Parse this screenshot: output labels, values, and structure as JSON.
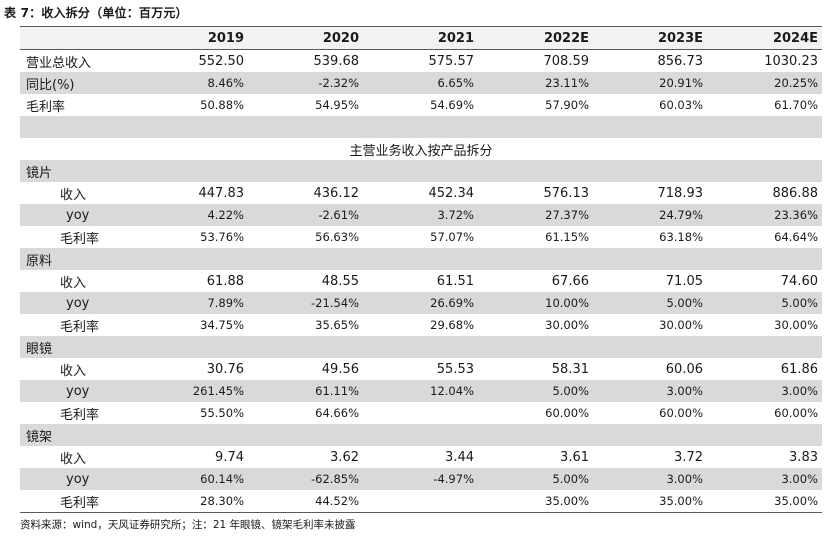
{
  "caption": "表 7：收入拆分（单位：百万元）",
  "columns": [
    "",
    "2019",
    "2020",
    "2021",
    "2022E",
    "2023E",
    "2024E"
  ],
  "summary_rows": [
    {
      "label": "营业总收入",
      "values": [
        "552.50",
        "539.68",
        "575.57",
        "708.59",
        "856.73",
        "1030.23"
      ]
    },
    {
      "label": "同比(%)",
      "values": [
        "8.46%",
        "-2.32%",
        "6.65%",
        "23.11%",
        "20.91%",
        "20.25%"
      ]
    },
    {
      "label": "毛利率",
      "values": [
        "50.88%",
        "54.95%",
        "54.69%",
        "57.90%",
        "60.03%",
        "61.70%"
      ]
    }
  ],
  "section_title": "主营业务收入按产品拆分",
  "groups": [
    {
      "name": "镜片",
      "rows": [
        {
          "label": "收入",
          "values": [
            "447.83",
            "436.12",
            "452.34",
            "576.13",
            "718.93",
            "886.88"
          ]
        },
        {
          "label": "yoy",
          "values": [
            "4.22%",
            "-2.61%",
            "3.72%",
            "27.37%",
            "24.79%",
            "23.36%"
          ]
        },
        {
          "label": "毛利率",
          "values": [
            "53.76%",
            "56.63%",
            "57.07%",
            "61.15%",
            "63.18%",
            "64.64%"
          ]
        }
      ]
    },
    {
      "name": "原料",
      "rows": [
        {
          "label": "收入",
          "values": [
            "61.88",
            "48.55",
            "61.51",
            "67.66",
            "71.05",
            "74.60"
          ]
        },
        {
          "label": "yoy",
          "values": [
            "7.89%",
            "-21.54%",
            "26.69%",
            "10.00%",
            "5.00%",
            "5.00%"
          ]
        },
        {
          "label": "毛利率",
          "values": [
            "34.75%",
            "35.65%",
            "29.68%",
            "30.00%",
            "30.00%",
            "30.00%"
          ]
        }
      ]
    },
    {
      "name": "眼镜",
      "rows": [
        {
          "label": "收入",
          "values": [
            "30.76",
            "49.56",
            "55.53",
            "58.31",
            "60.06",
            "61.86"
          ]
        },
        {
          "label": "yoy",
          "values": [
            "261.45%",
            "61.11%",
            "12.04%",
            "5.00%",
            "3.00%",
            "3.00%"
          ]
        },
        {
          "label": "毛利率",
          "values": [
            "55.50%",
            "64.66%",
            "",
            "60.00%",
            "60.00%",
            "60.00%"
          ]
        }
      ]
    },
    {
      "name": "镜架",
      "rows": [
        {
          "label": "收入",
          "values": [
            "9.74",
            "3.62",
            "3.44",
            "3.61",
            "3.72",
            "3.83"
          ]
        },
        {
          "label": "yoy",
          "values": [
            "60.14%",
            "-62.85%",
            "-4.97%",
            "5.00%",
            "3.00%",
            "3.00%"
          ]
        },
        {
          "label": "毛利率",
          "values": [
            "28.30%",
            "44.52%",
            "",
            "35.00%",
            "35.00%",
            "35.00%"
          ]
        }
      ]
    }
  ],
  "note": "资料来源：wind，天风证券研究所；注：21 年眼镜、镜架毛利率未披露"
}
